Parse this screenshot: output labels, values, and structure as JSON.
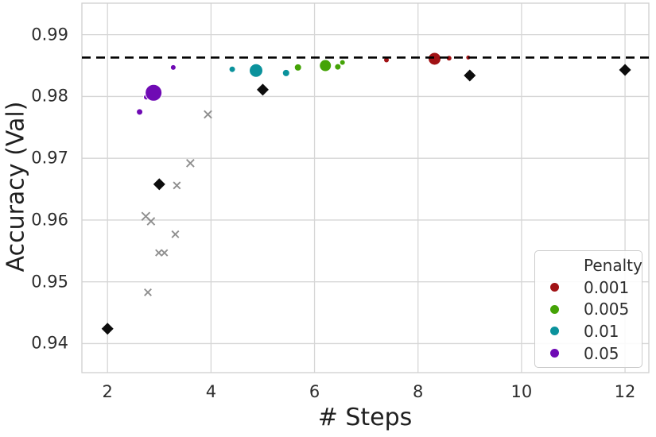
{
  "chart_data": {
    "type": "scatter",
    "title": "",
    "xlabel": "# Steps",
    "ylabel": "Accuracy (Val)",
    "x_ticks": [
      2,
      4,
      6,
      8,
      10,
      12
    ],
    "y_ticks": [
      0.99,
      0.98,
      0.97,
      0.96,
      0.95,
      0.94
    ],
    "x_range": [
      1.505,
      12.46
    ],
    "y_range": [
      0.9353,
      0.9951
    ],
    "grid": true,
    "hline": {
      "y": 0.9863,
      "style": "dashed",
      "color": "#000000"
    },
    "legend": {
      "title": "Penalty",
      "position": "lower right"
    },
    "series": [
      {
        "name": "gray-x",
        "marker": "x",
        "color": "#8f8f8f",
        "in_legend": false,
        "points": [
          {
            "x": 2.74,
            "y": 0.9606,
            "size": 13
          },
          {
            "x": 2.84,
            "y": 0.9598,
            "size": 12
          },
          {
            "x": 2.78,
            "y": 0.9483,
            "size": 11
          },
          {
            "x": 2.99,
            "y": 0.9547,
            "size": 10
          },
          {
            "x": 3.1,
            "y": 0.9547,
            "size": 10
          },
          {
            "x": 3.31,
            "y": 0.9577,
            "size": 11
          },
          {
            "x": 3.34,
            "y": 0.9656,
            "size": 11
          },
          {
            "x": 3.6,
            "y": 0.9692,
            "size": 12
          },
          {
            "x": 3.94,
            "y": 0.9771,
            "size": 12
          }
        ]
      },
      {
        "name": "black-diamond",
        "marker": "diamond",
        "color": "#0d0d0d",
        "in_legend": false,
        "points": [
          {
            "x": 2.0,
            "y": 0.9424,
            "size": 15
          },
          {
            "x": 3.0,
            "y": 0.9658,
            "size": 15
          },
          {
            "x": 5.0,
            "y": 0.9811,
            "size": 15
          },
          {
            "x": 9.0,
            "y": 0.9834,
            "size": 15
          },
          {
            "x": 12.0,
            "y": 0.9843,
            "size": 15
          }
        ]
      },
      {
        "name": "0.001",
        "marker": "circle",
        "color": "#a11215",
        "in_legend": true,
        "points": [
          {
            "x": 7.39,
            "y": 0.9859,
            "size": 7
          },
          {
            "x": 8.32,
            "y": 0.9861,
            "size": 16
          },
          {
            "x": 8.6,
            "y": 0.9862,
            "size": 7
          },
          {
            "x": 8.97,
            "y": 0.9863,
            "size": 6
          }
        ]
      },
      {
        "name": "0.005",
        "marker": "circle",
        "color": "#44a306",
        "in_legend": true,
        "points": [
          {
            "x": 5.68,
            "y": 0.9847,
            "size": 9
          },
          {
            "x": 6.21,
            "y": 0.985,
            "size": 15
          },
          {
            "x": 6.45,
            "y": 0.9848,
            "size": 8
          },
          {
            "x": 6.54,
            "y": 0.9855,
            "size": 7
          }
        ]
      },
      {
        "name": "0.01",
        "marker": "circle",
        "color": "#0b929c",
        "in_legend": true,
        "points": [
          {
            "x": 4.41,
            "y": 0.9844,
            "size": 8
          },
          {
            "x": 4.87,
            "y": 0.9842,
            "size": 17
          },
          {
            "x": 5.45,
            "y": 0.9838,
            "size": 9
          }
        ]
      },
      {
        "name": "0.05",
        "marker": "circle",
        "color": "#6f0ab4",
        "in_legend": true,
        "points": [
          {
            "x": 2.62,
            "y": 0.9775,
            "size": 8
          },
          {
            "x": 2.75,
            "y": 0.9799,
            "size": 7
          },
          {
            "x": 2.89,
            "y": 0.9806,
            "size": 21
          },
          {
            "x": 3.27,
            "y": 0.9847,
            "size": 7
          }
        ]
      }
    ]
  }
}
